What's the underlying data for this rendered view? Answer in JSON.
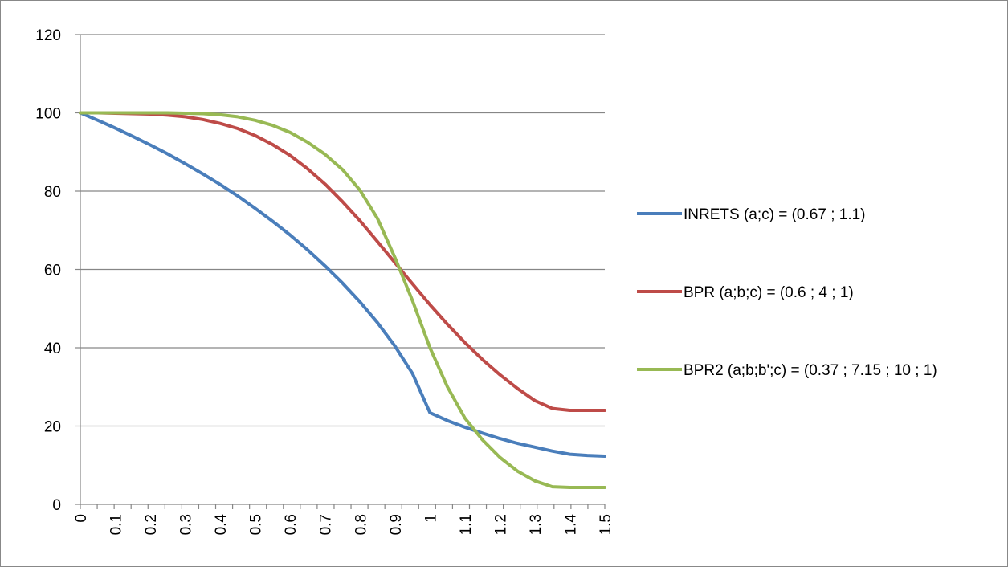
{
  "chart_data": {
    "type": "line",
    "title": "",
    "xlabel": "",
    "ylabel": "",
    "x": [
      0,
      0.05,
      0.1,
      0.15,
      0.2,
      0.25,
      0.3,
      0.35,
      0.4,
      0.45,
      0.5,
      0.55,
      0.6,
      0.65,
      0.7,
      0.75,
      0.8,
      0.85,
      0.9,
      0.95,
      1.0,
      1.05,
      1.1,
      1.15,
      1.2,
      1.25,
      1.3,
      1.35,
      1.4,
      1.45,
      1.5
    ],
    "x_tick_labels": [
      "0",
      "0.1",
      "0.2",
      "0.3",
      "0.4",
      "0.5",
      "0.6",
      "0.7",
      "0.8",
      "0.9",
      "1",
      "1.1",
      "1.2",
      "1.3",
      "1.4",
      "1.5"
    ],
    "x_tick_values": [
      0,
      0.1,
      0.2,
      0.3,
      0.4,
      0.5,
      0.6,
      0.7,
      0.8,
      0.9,
      1.0,
      1.1,
      1.2,
      1.3,
      1.4,
      1.5
    ],
    "xlim": [
      0,
      1.5
    ],
    "ylim": [
      0,
      120
    ],
    "y_ticks": [
      0,
      20,
      40,
      60,
      80,
      100,
      120
    ],
    "grid": "horizontal",
    "legend_position": "right",
    "series": [
      {
        "name": "INRETS (a;c) = (0.67 ; 1.1)",
        "color": "#4a7ebb",
        "values": [
          100,
          98.1,
          96.1,
          94.0,
          91.8,
          89.5,
          87.0,
          84.4,
          81.7,
          78.8,
          75.6,
          72.3,
          68.8,
          65.0,
          60.9,
          56.5,
          51.7,
          46.4,
          40.4,
          33.4,
          23.4,
          21.4,
          19.7,
          18.2,
          16.8,
          15.6,
          14.6,
          13.6,
          12.8,
          12.5,
          12.3
        ]
      },
      {
        "name": "BPR (a;b;c) = (0.6 ; 4 ; 1)",
        "color": "#be4b48",
        "values": [
          100,
          100,
          99.9,
          99.8,
          99.7,
          99.4,
          99.0,
          98.3,
          97.3,
          96.0,
          94.2,
          91.9,
          89.1,
          85.7,
          81.8,
          77.3,
          72.4,
          67.1,
          61.7,
          56.3,
          51.0,
          46.0,
          41.3,
          37.0,
          33.1,
          29.6,
          26.5,
          24.5,
          24.0,
          24.0,
          24.0
        ]
      },
      {
        "name": "BPR2 (a;b;b';c) = (0.37 ; 7.15 ; 10 ; 1)",
        "color": "#98b954",
        "values": [
          100,
          100,
          100,
          100,
          100,
          100,
          99.9,
          99.8,
          99.5,
          99.0,
          98.1,
          96.8,
          95.0,
          92.5,
          89.4,
          85.5,
          80.2,
          73.0,
          63.0,
          52.0,
          40.0,
          30.0,
          22.0,
          16.5,
          12.0,
          8.5,
          6.0,
          4.5,
          4.3,
          4.3,
          4.3
        ]
      }
    ]
  }
}
